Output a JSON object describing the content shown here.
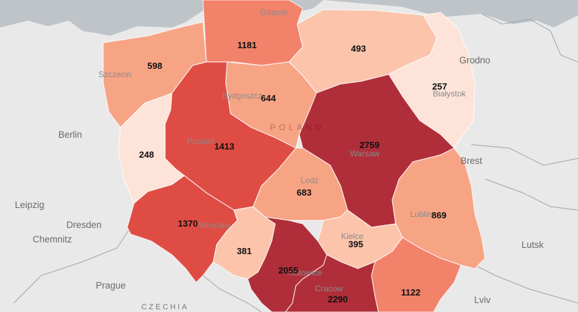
{
  "colors": {
    "land": "#e9e9e9",
    "sea": "#bfc4c9",
    "scale": [
      "#fde3d8",
      "#fbc4ab",
      "#f7a485",
      "#f2826a",
      "#df4c44",
      "#b02e3a"
    ]
  },
  "country_label": "POLAND",
  "regions": [
    {
      "id": "zachodniopomorskie",
      "value": "598",
      "level": 2
    },
    {
      "id": "pomorskie",
      "value": "1181",
      "level": 3
    },
    {
      "id": "warminsko-mazurskie",
      "value": "493",
      "level": 1
    },
    {
      "id": "podlaskie",
      "value": "257",
      "level": 0
    },
    {
      "id": "lubuskie",
      "value": "248",
      "level": 0
    },
    {
      "id": "kujawsko-pomorskie",
      "value": "644",
      "level": 2
    },
    {
      "id": "wielkopolskie",
      "value": "1413",
      "level": 4
    },
    {
      "id": "mazowieckie",
      "value": "2759",
      "level": 5
    },
    {
      "id": "lodzkie",
      "value": "683",
      "level": 2
    },
    {
      "id": "dolnoslaskie",
      "value": "1370",
      "level": 4
    },
    {
      "id": "lubelskie",
      "value": "869",
      "level": 2
    },
    {
      "id": "opolskie",
      "value": "381",
      "level": 1
    },
    {
      "id": "swietokrzyskie",
      "value": "395",
      "level": 1
    },
    {
      "id": "slaskie",
      "value": "2055",
      "level": 5
    },
    {
      "id": "malopolskie",
      "value": "2290",
      "level": 5
    },
    {
      "id": "podkarpackie",
      "value": "1122",
      "level": 3
    }
  ],
  "cities_inside": [
    "Gdansk",
    "Szczecin",
    "Bydgoszcz",
    "Białystok",
    "Poznań",
    "Warsaw",
    "Lodz",
    "Wroclaw",
    "Lublin",
    "Kielce",
    "Katowice",
    "Cracow"
  ],
  "cities_outside": [
    "Berlin",
    "Leipzig",
    "Dresden",
    "Chemnitz",
    "Prague",
    "Grodno",
    "Brest",
    "Lutsk",
    "Lviv"
  ],
  "countries_outside": [
    "CZECHIA"
  ]
}
